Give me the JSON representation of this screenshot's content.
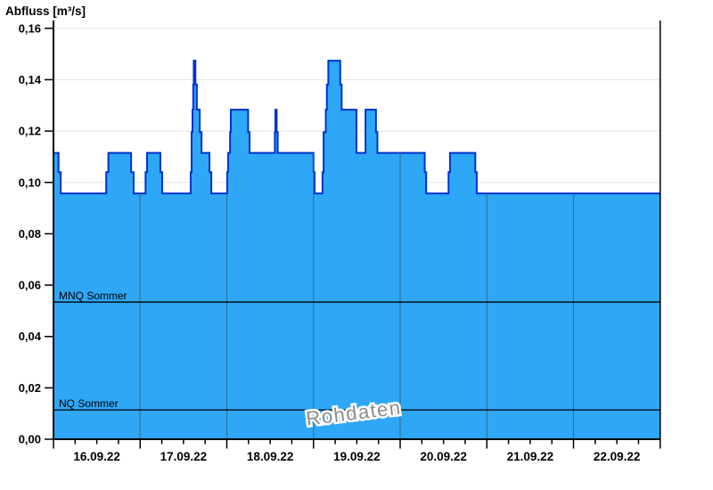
{
  "title": "Abfluss [m³/s]",
  "watermark": "Rohdaten",
  "colors": {
    "fill": "#2fa7f7",
    "step_line": "#0033cc",
    "grid": "#e5e5e5",
    "day_grid": "#35719b",
    "axis": "#000000",
    "reference_line": "#000000",
    "watermark": "#8c8c8c",
    "watermark_halo": "#ffffff",
    "label": "#000000"
  },
  "chart_data": {
    "type": "area",
    "title": "Abfluss [m³/s]",
    "ylabel": "Abfluss [m³/s]",
    "xlabel": "",
    "grid": true,
    "ylim": [
      0,
      0.16
    ],
    "ytick_step": 0.02,
    "yticks": [
      {
        "value": 0.0,
        "label": "0,00"
      },
      {
        "value": 0.02,
        "label": "0,02"
      },
      {
        "value": 0.04,
        "label": "0,04"
      },
      {
        "value": 0.06,
        "label": "0,06"
      },
      {
        "value": 0.08,
        "label": "0,08"
      },
      {
        "value": 0.1,
        "label": "0,10"
      },
      {
        "value": 0.12,
        "label": "0,12"
      },
      {
        "value": 0.14,
        "label": "0,14"
      },
      {
        "value": 0.16,
        "label": "0,16"
      }
    ],
    "x_start": "16.09.22 00:00",
    "x_end": "23.09.22 00:00",
    "x_total_hours": 168,
    "x_major_tick_hours": 24,
    "x_minor_tick_hours": 6,
    "x_day_labels": [
      "16.09.22",
      "17.09.22",
      "18.09.22",
      "19.09.22",
      "20.09.22",
      "21.09.22",
      "22.09.22"
    ],
    "series_name": "Abfluss Rohdaten",
    "steps_hours_value": [
      [
        0,
        0.1115
      ],
      [
        1.4,
        0.104
      ],
      [
        2.0,
        0.0957
      ],
      [
        14.6,
        0.104
      ],
      [
        15.2,
        0.1115
      ],
      [
        21.5,
        0.104
      ],
      [
        22.2,
        0.0957
      ],
      [
        25.5,
        0.104
      ],
      [
        25.9,
        0.1115
      ],
      [
        29.6,
        0.104
      ],
      [
        30.1,
        0.0957
      ],
      [
        38.0,
        0.104
      ],
      [
        38.25,
        0.1196
      ],
      [
        38.5,
        0.1283
      ],
      [
        38.7,
        0.1381
      ],
      [
        38.85,
        0.1474
      ],
      [
        39.3,
        0.1381
      ],
      [
        39.7,
        0.1283
      ],
      [
        40.5,
        0.1196
      ],
      [
        41.0,
        0.1115
      ],
      [
        43.2,
        0.104
      ],
      [
        43.7,
        0.0957
      ],
      [
        48.1,
        0.104
      ],
      [
        48.35,
        0.1115
      ],
      [
        48.9,
        0.1196
      ],
      [
        49.1,
        0.1283
      ],
      [
        53.9,
        0.1196
      ],
      [
        54.3,
        0.1115
      ],
      [
        61.3,
        0.1196
      ],
      [
        61.45,
        0.1283
      ],
      [
        61.8,
        0.1196
      ],
      [
        62.1,
        0.1115
      ],
      [
        72.0,
        0.104
      ],
      [
        72.3,
        0.0957
      ],
      [
        74.5,
        0.104
      ],
      [
        74.8,
        0.1196
      ],
      [
        75.4,
        0.1283
      ],
      [
        75.7,
        0.1381
      ],
      [
        76.1,
        0.1474
      ],
      [
        79.4,
        0.1381
      ],
      [
        79.8,
        0.1283
      ],
      [
        83.9,
        0.1115
      ],
      [
        86.4,
        0.1283
      ],
      [
        89.3,
        0.1196
      ],
      [
        89.7,
        0.1115
      ],
      [
        102.8,
        0.104
      ],
      [
        103.2,
        0.0957
      ],
      [
        109.4,
        0.104
      ],
      [
        109.8,
        0.1115
      ],
      [
        116.8,
        0.104
      ],
      [
        117.2,
        0.0957
      ]
    ],
    "reference_lines": [
      {
        "label": "MNQ Sommer",
        "value": 0.0534
      },
      {
        "label": "NQ Sommer",
        "value": 0.0114
      }
    ],
    "watermark": "Rohdaten",
    "legend_position": "none"
  }
}
